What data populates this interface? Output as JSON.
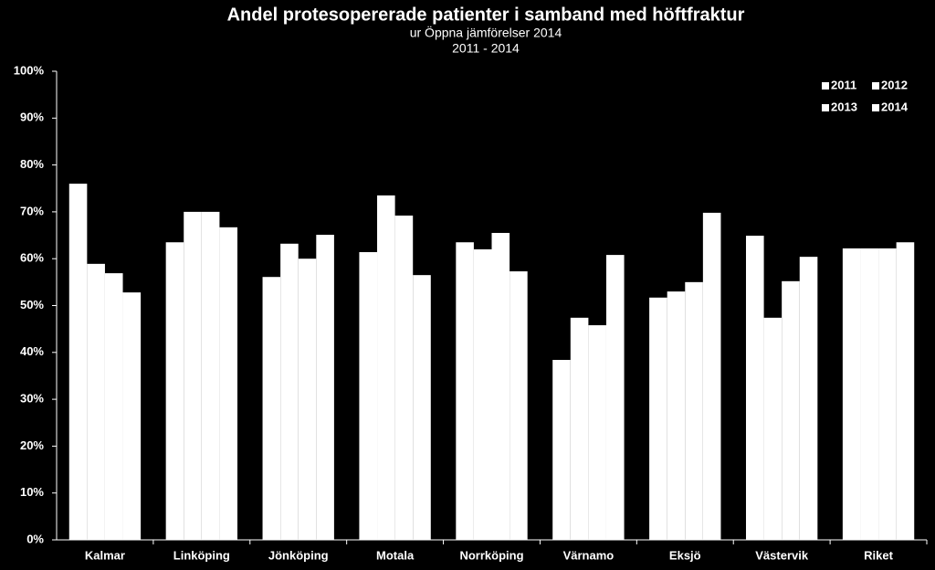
{
  "chart_data": {
    "type": "bar",
    "title": "Andel protesopererade patienter i samband med höftfraktur",
    "subtitle": "ur Öppna jämförelser 2014",
    "subtitle2": "2011 - 2014",
    "categories": [
      "Kalmar",
      "Linköping",
      "Jönköping",
      "Motala",
      "Norrköping",
      "Värnamo",
      "Eksjö",
      "Västervik",
      "Riket"
    ],
    "series": [
      {
        "name": "2011",
        "color": "#ffffff",
        "values": [
          76.0,
          63.5,
          56.1,
          61.4,
          63.5,
          38.4,
          51.7,
          64.9,
          62.2
        ]
      },
      {
        "name": "2012",
        "color": "#ffffff",
        "values": [
          58.9,
          70.0,
          63.2,
          73.5,
          62.0,
          47.4,
          53.0,
          47.4,
          62.2
        ]
      },
      {
        "name": "2013",
        "color": "#ffffff",
        "values": [
          56.9,
          70.0,
          60.0,
          69.2,
          65.5,
          45.8,
          55.0,
          55.2,
          62.2
        ]
      },
      {
        "name": "2014",
        "color": "#ffffff",
        "values": [
          52.8,
          66.7,
          65.1,
          56.5,
          57.3,
          60.8,
          69.8,
          60.4,
          63.5
        ]
      }
    ],
    "ylim": [
      0,
      100
    ],
    "yticks": [
      {
        "value": 0,
        "label": "0%"
      },
      {
        "value": 10,
        "label": "10%"
      },
      {
        "value": 20,
        "label": "20%"
      },
      {
        "value": 30,
        "label": "30%"
      },
      {
        "value": 40,
        "label": "40%"
      },
      {
        "value": 50,
        "label": "50%"
      },
      {
        "value": 60,
        "label": "60%"
      },
      {
        "value": 70,
        "label": "70%"
      },
      {
        "value": 80,
        "label": "80%"
      },
      {
        "value": 90,
        "label": "90%"
      },
      {
        "value": 100,
        "label": "100%"
      }
    ],
    "grid": false,
    "legend": "top-right"
  }
}
